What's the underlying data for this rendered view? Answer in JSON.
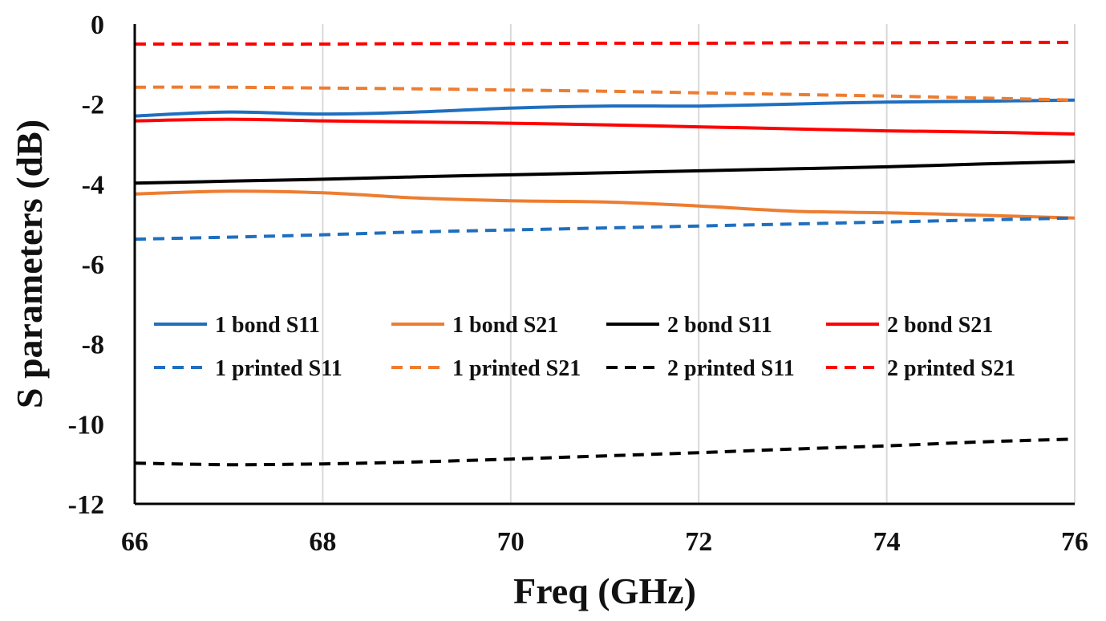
{
  "chart_data": {
    "type": "line",
    "title": "",
    "xlabel": "Freq (GHz)",
    "ylabel": "S parameters (dB)",
    "xlim": [
      66,
      76
    ],
    "ylim": [
      -12,
      0
    ],
    "xticks": [
      66,
      68,
      70,
      72,
      74,
      76
    ],
    "yticks": [
      0,
      -2,
      -4,
      -6,
      -8,
      -10,
      -12
    ],
    "x_tick_labels": [
      "66",
      "68",
      "70",
      "72",
      "74",
      "76"
    ],
    "y_tick_labels": [
      "0",
      "-2",
      "-4",
      "-6",
      "-8",
      "-10",
      "-12"
    ],
    "grid": "vertical",
    "legend_position": "center-left, inside plot",
    "x": [
      66,
      67,
      68,
      69,
      70,
      71,
      72,
      73,
      74,
      75,
      76
    ],
    "series": [
      {
        "name": "1 bond S11",
        "color": "#1f6fbf",
        "style": "solid",
        "values": [
          -2.3,
          -2.2,
          -2.25,
          -2.2,
          -2.1,
          -2.05,
          -2.05,
          -2.0,
          -1.95,
          -1.93,
          -1.9
        ]
      },
      {
        "name": "1 bond S21",
        "color": "#ed7d31",
        "style": "solid",
        "values": [
          -4.25,
          -4.18,
          -4.22,
          -4.35,
          -4.42,
          -4.45,
          -4.55,
          -4.68,
          -4.72,
          -4.78,
          -4.85
        ]
      },
      {
        "name": "2 bond S11",
        "color": "#000000",
        "style": "solid",
        "values": [
          -3.98,
          -3.93,
          -3.88,
          -3.82,
          -3.77,
          -3.72,
          -3.67,
          -3.62,
          -3.57,
          -3.5,
          -3.44
        ]
      },
      {
        "name": "2 bond S21",
        "color": "#ff0000",
        "style": "solid",
        "values": [
          -2.42,
          -2.38,
          -2.42,
          -2.45,
          -2.48,
          -2.52,
          -2.57,
          -2.62,
          -2.67,
          -2.7,
          -2.75
        ]
      },
      {
        "name": "1 printed S11",
        "color": "#1f6fbf",
        "style": "dashed",
        "values": [
          -5.38,
          -5.33,
          -5.27,
          -5.2,
          -5.15,
          -5.1,
          -5.05,
          -5.0,
          -4.95,
          -4.9,
          -4.85
        ]
      },
      {
        "name": "1 printed S21",
        "color": "#ed7d31",
        "style": "dashed",
        "values": [
          -1.58,
          -1.58,
          -1.6,
          -1.62,
          -1.65,
          -1.68,
          -1.72,
          -1.76,
          -1.8,
          -1.85,
          -1.9
        ]
      },
      {
        "name": "2 printed S11",
        "color": "#000000",
        "style": "dashed",
        "values": [
          -10.98,
          -11.02,
          -11.0,
          -10.95,
          -10.88,
          -10.8,
          -10.72,
          -10.63,
          -10.55,
          -10.45,
          -10.38
        ]
      },
      {
        "name": "2 printed S21",
        "color": "#ff0000",
        "style": "dashed",
        "values": [
          -0.5,
          -0.5,
          -0.5,
          -0.49,
          -0.49,
          -0.48,
          -0.48,
          -0.47,
          -0.47,
          -0.46,
          -0.46
        ]
      }
    ]
  }
}
